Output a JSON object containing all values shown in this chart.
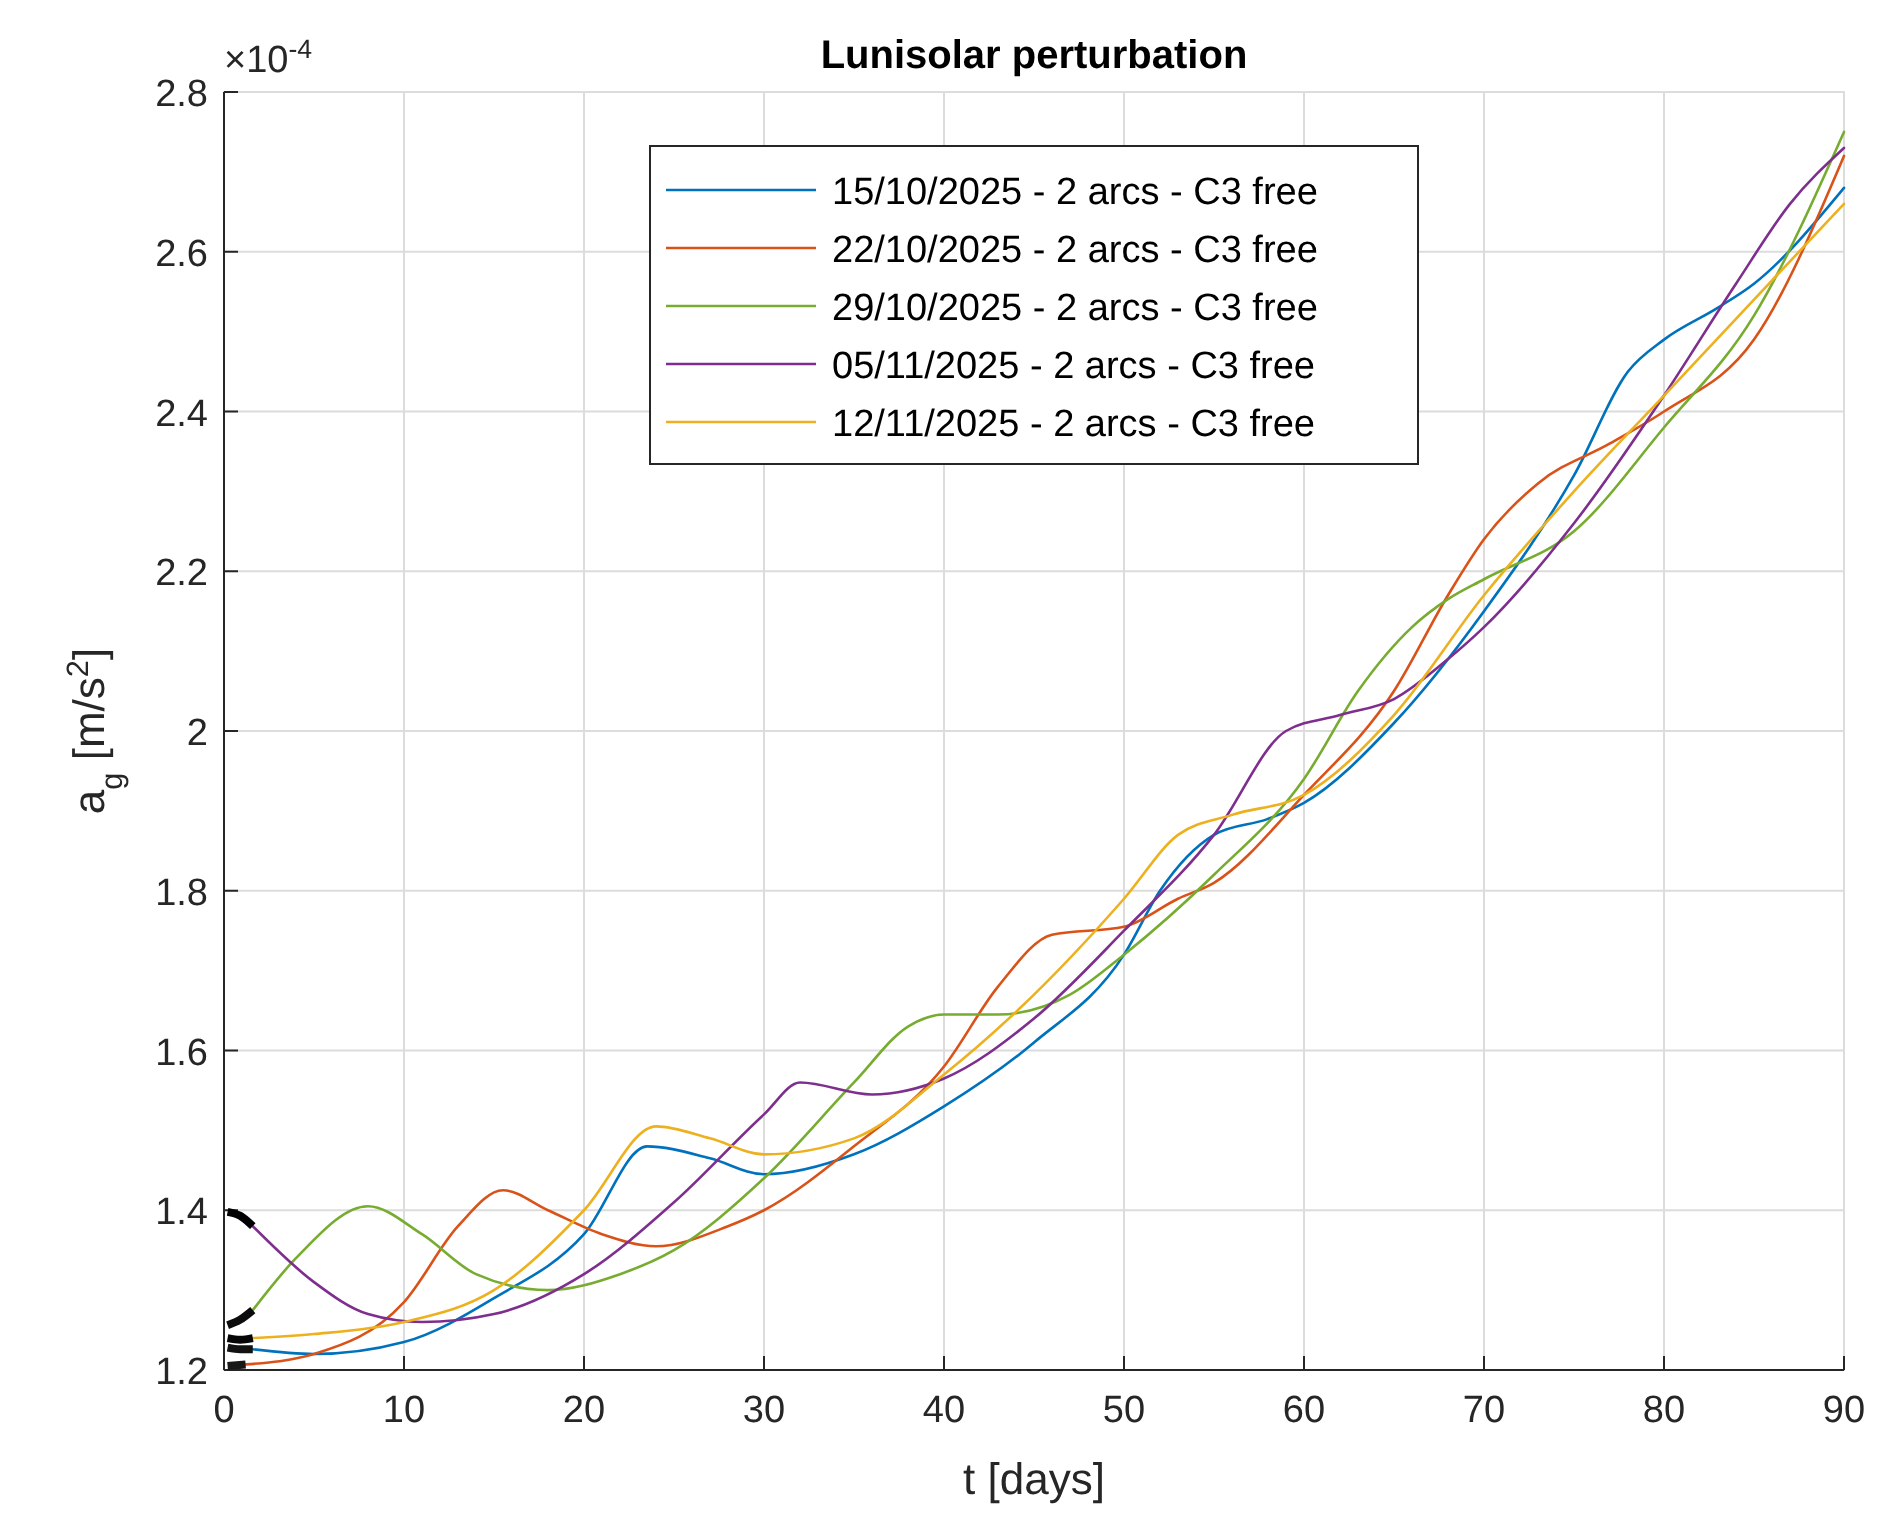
{
  "chart_data": {
    "type": "line",
    "title": "Lunisolar perturbation",
    "xlabel": "t [days]",
    "ylabel": "a$_{g}$ [m/s$^{2}$]",
    "annotations": [
      "×10$^{-4}$"
    ],
    "xlim": [
      0,
      90
    ],
    "xticks": [
      0,
      10,
      20,
      30,
      40,
      50,
      60,
      70,
      80,
      90
    ],
    "ylim": [
      1.2,
      2.8
    ],
    "yticks": [
      1.2,
      1.4,
      1.6,
      1.8,
      2,
      2.2,
      2.4,
      2.6,
      2.8
    ],
    "grid": true,
    "legend": "top",
    "line_style": "solid",
    "marker": "none",
    "series": [
      {
        "name": "15/10/2025 - 2 arcs - C3 free",
        "color": "#0072bd",
        "x": [
          1.6,
          5,
          10,
          15,
          20,
          23.5,
          27,
          30,
          35,
          40,
          45,
          50,
          52,
          55,
          58,
          60,
          65,
          70,
          75,
          78,
          80,
          83,
          85,
          90
        ],
        "values": [
          1.226,
          1.22,
          1.235,
          1.29,
          1.37,
          1.48,
          1.465,
          1.445,
          1.47,
          1.53,
          1.61,
          1.72,
          1.8,
          1.87,
          1.89,
          1.91,
          2.01,
          2.15,
          2.32,
          2.45,
          2.49,
          2.53,
          2.56,
          2.68
        ]
      },
      {
        "name": "22/10/2025 - 2 arcs - C3 free",
        "color": "#d95319",
        "x": [
          1.2,
          5,
          10,
          13,
          15.5,
          18,
          21,
          24,
          28,
          30,
          35,
          40,
          43,
          46,
          50,
          53,
          55,
          60,
          65,
          68,
          70,
          73,
          77,
          80,
          85,
          90
        ],
        "values": [
          1.207,
          1.22,
          1.285,
          1.38,
          1.425,
          1.4,
          1.37,
          1.355,
          1.38,
          1.4,
          1.48,
          1.58,
          1.68,
          1.745,
          1.755,
          1.79,
          1.81,
          1.92,
          2.05,
          2.17,
          2.24,
          2.31,
          2.36,
          2.4,
          2.49,
          2.72
        ]
      },
      {
        "name": "29/10/2025 - 2 arcs - C3 free",
        "color": "#77ac30",
        "x": [
          1.6,
          4,
          8,
          11,
          14,
          18,
          22,
          25,
          30,
          35,
          38,
          40,
          43,
          47,
          50,
          55,
          60,
          63,
          66,
          68,
          70,
          75,
          80,
          85,
          90
        ],
        "values": [
          1.275,
          1.34,
          1.405,
          1.37,
          1.32,
          1.3,
          1.32,
          1.35,
          1.44,
          1.56,
          1.63,
          1.645,
          1.645,
          1.67,
          1.72,
          1.82,
          1.94,
          2.05,
          2.13,
          2.165,
          2.19,
          2.25,
          2.38,
          2.52,
          2.75
        ]
      },
      {
        "name": "05/11/2025 - 2 arcs - C3 free",
        "color": "#7e2f8e",
        "x": [
          1.6,
          5,
          8,
          11,
          15,
          20,
          25,
          30,
          32,
          36,
          40,
          45,
          50,
          55,
          59,
          62,
          65,
          68,
          70,
          75,
          80,
          84,
          87,
          90
        ],
        "values": [
          1.38,
          1.31,
          1.27,
          1.26,
          1.27,
          1.32,
          1.41,
          1.52,
          1.56,
          1.545,
          1.565,
          1.64,
          1.75,
          1.87,
          2,
          2.02,
          2.04,
          2.09,
          2.13,
          2.26,
          2.42,
          2.56,
          2.66,
          2.73
        ]
      },
      {
        "name": "12/11/2025 - 2 arcs - C3 free",
        "color": "#edb120",
        "x": [
          1.6,
          5,
          10,
          15,
          20,
          24,
          27,
          30,
          35,
          40,
          45,
          50,
          53,
          56,
          60,
          65,
          70,
          75,
          80,
          85,
          90
        ],
        "values": [
          1.24,
          1.245,
          1.26,
          1.3,
          1.4,
          1.505,
          1.49,
          1.47,
          1.49,
          1.57,
          1.67,
          1.79,
          1.87,
          1.895,
          1.92,
          2.02,
          2.17,
          2.3,
          2.42,
          2.54,
          2.66
        ]
      },
      {
        "color": "#000000",
        "x": [
          0.2,
          0.9,
          1.6
        ],
        "values": [
          1.398,
          1.393,
          1.38
        ]
      },
      {
        "color": "#0c0c0c",
        "x": [
          0.2,
          0.9,
          1.6
        ],
        "values": [
          1.256,
          1.263,
          1.275
        ]
      },
      {
        "color": "#060606",
        "x": [
          0.2,
          0.9,
          1.6
        ],
        "values": [
          1.24,
          1.238,
          1.24
        ]
      },
      {
        "color": "#121212",
        "x": [
          0.2,
          0.9,
          1.6
        ],
        "values": [
          1.228,
          1.226,
          1.226
        ]
      },
      {
        "color": "#181818",
        "x": [
          0.2,
          1.2
        ],
        "values": [
          1.205,
          1.207
        ]
      }
    ]
  }
}
